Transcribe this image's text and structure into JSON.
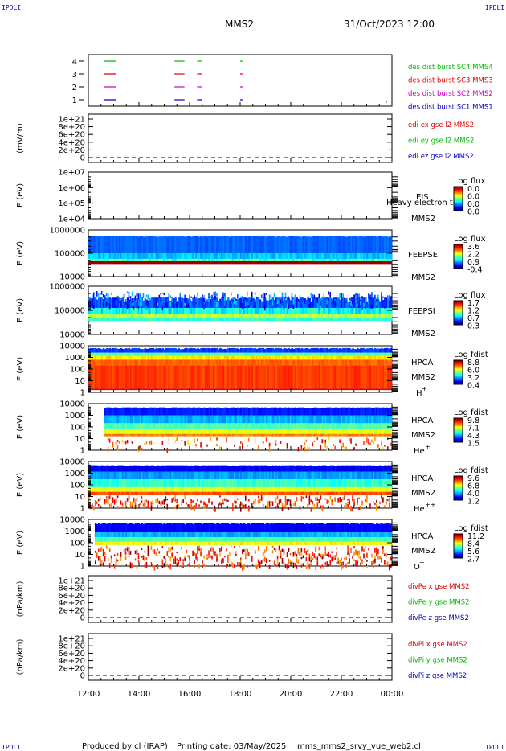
{
  "header": {
    "corner_tl": "IPDLI",
    "corner_tr": "IPDLI",
    "corner_bl": "IPDLI",
    "corner_br": "IPDLI",
    "spacecraft": "MMS2",
    "datetime": "31/Oct/2023 12:00"
  },
  "footer": {
    "produced": "Produced by cl (IRAP)",
    "printing": "Printing date: 03/May/2025",
    "script": "mms_mms2_srvy_vue_web2.cl"
  },
  "colors": {
    "mms1": "#0000cc",
    "mms2": "#cc00cc",
    "mms3": "#dd0000",
    "mms4": "#00bb00"
  },
  "chart_data": [
    {
      "type": "line",
      "id": "burst",
      "ylabel": "",
      "yticks": [
        "4",
        "3",
        "2",
        "1"
      ],
      "x_start": "12:00",
      "x_end": "00:00",
      "series": [
        {
          "name": "des dist burst SC1 MMS1",
          "level": 1,
          "color": "#0000cc",
          "intervals": [
            [
              12.6,
              13.1
            ],
            [
              15.4,
              15.8
            ],
            [
              16.3,
              16.5
            ],
            [
              18.0,
              18.1
            ]
          ]
        },
        {
          "name": "des dist burst SC2 MMS2",
          "level": 2,
          "color": "#cc00cc",
          "intervals": [
            [
              12.6,
              13.1
            ],
            [
              15.4,
              15.8
            ],
            [
              16.3,
              16.5
            ],
            [
              18.0,
              18.1
            ]
          ]
        },
        {
          "name": "des dist burst SC3 MMS3",
          "level": 3,
          "color": "#dd0000",
          "intervals": [
            [
              12.6,
              13.1
            ],
            [
              15.4,
              15.8
            ],
            [
              16.3,
              16.5
            ],
            [
              18.0,
              18.1
            ]
          ]
        },
        {
          "name": "des dist burst SC4 MMS4",
          "level": 4,
          "color": "#00bb00",
          "intervals": [
            [
              12.6,
              13.1
            ],
            [
              15.4,
              15.8
            ],
            [
              16.3,
              16.5
            ],
            [
              18.0,
              18.1
            ]
          ]
        }
      ]
    },
    {
      "type": "line",
      "id": "edi",
      "ylabel": "(mV/m)",
      "yticks": [
        "1e+21",
        "8e+20",
        "6e+20",
        "4e+20",
        "2e+20",
        "0"
      ],
      "series": [
        {
          "name": "edi ex gse l2 MMS2",
          "color": "#dd0000"
        },
        {
          "name": "edi ey gse l2 MMS2",
          "color": "#00bb00"
        },
        {
          "name": "edi ez gse l2 MMS2",
          "color": "#0000cc"
        }
      ]
    },
    {
      "type": "heatmap",
      "id": "eis",
      "ylabel": "E (eV)",
      "yticks": [
        "1e+07",
        "1e+06",
        "1e+05",
        "1e+04"
      ],
      "instrument": "EIS",
      "overlay": "Heavy electron to",
      "spacecraft": "MMS2",
      "cbar_title": "Log flux",
      "cbar_ticks": [
        "0.0",
        "0.0",
        "0.0",
        "0.0"
      ]
    },
    {
      "type": "heatmap",
      "id": "feepse",
      "ylabel": "E (eV)",
      "yticks": [
        "1000000",
        "100000",
        "10000"
      ],
      "instrument": "FEEPSE",
      "spacecraft": "MMS2",
      "cbar_title": "Log flux",
      "cbar_ticks": [
        "3.6",
        "2.2",
        "0.9",
        "-0.4"
      ]
    },
    {
      "type": "heatmap",
      "id": "feepsi",
      "ylabel": "E (eV)",
      "yticks": [
        "1000000",
        "100000",
        "10000"
      ],
      "instrument": "FEEPSI",
      "spacecraft": "MMS2",
      "cbar_title": "Log flux",
      "cbar_ticks": [
        "1.7",
        "1.2",
        "0.7",
        "0.3"
      ]
    },
    {
      "type": "heatmap",
      "id": "hpca_h",
      "ylabel": "E (eV)",
      "yticks": [
        "10000",
        "1000",
        "100",
        "10",
        "1"
      ],
      "instrument": "HPCA",
      "spacecraft": "MMS2",
      "species": "H",
      "charge": "+",
      "cbar_title": "Log fdist",
      "cbar_ticks": [
        "8.8",
        "6.0",
        "3.2",
        "0.4"
      ]
    },
    {
      "type": "heatmap",
      "id": "hpca_he",
      "ylabel": "E (eV)",
      "yticks": [
        "10000",
        "1000",
        "100",
        "10",
        "1"
      ],
      "instrument": "HPCA",
      "spacecraft": "MMS2",
      "species": "He",
      "charge": "+",
      "cbar_title": "Log fdist",
      "cbar_ticks": [
        "9.8",
        "7.1",
        "4.3",
        "1.5"
      ]
    },
    {
      "type": "heatmap",
      "id": "hpca_hepp",
      "ylabel": "E (eV)",
      "yticks": [
        "10000",
        "1000",
        "100",
        "10",
        "1"
      ],
      "instrument": "HPCA",
      "spacecraft": "MMS2",
      "species": "He",
      "charge": "++",
      "cbar_title": "Log fdist",
      "cbar_ticks": [
        "9.6",
        "6.8",
        "4.0",
        "1.2"
      ]
    },
    {
      "type": "heatmap",
      "id": "hpca_o",
      "ylabel": "E (eV)",
      "yticks": [
        "10000",
        "1000",
        "100",
        "10",
        "1"
      ],
      "instrument": "HPCA",
      "spacecraft": "MMS2",
      "species": "O",
      "charge": "+",
      "cbar_title": "Log fdist",
      "cbar_ticks": [
        "11.2",
        "8.4",
        "5.6",
        "2.7"
      ]
    },
    {
      "type": "line",
      "id": "divpe",
      "ylabel": "(nPa/km)",
      "yticks": [
        "1e+21",
        "8e+20",
        "6e+20",
        "4e+20",
        "2e+20",
        "0"
      ],
      "series": [
        {
          "name": "divPe x gse MMS2",
          "color": "#dd0000"
        },
        {
          "name": "divPe y gse MMS2",
          "color": "#00bb00"
        },
        {
          "name": "divPe z gse MMS2",
          "color": "#0000cc"
        }
      ]
    },
    {
      "type": "line",
      "id": "divpi",
      "ylabel": "(nPa/km)",
      "yticks": [
        "1e+21",
        "8e+20",
        "6e+20",
        "4e+20",
        "2e+20",
        "0"
      ],
      "series": [
        {
          "name": "divPi x gse MMS2",
          "color": "#dd0000"
        },
        {
          "name": "divPi y gse MMS2",
          "color": "#00bb00"
        },
        {
          "name": "divPi z gse MMS2",
          "color": "#0000cc"
        }
      ]
    }
  ],
  "xaxis": {
    "ticks": [
      "12:00",
      "14:00",
      "16:00",
      "18:00",
      "20:00",
      "22:00",
      "00:00"
    ]
  }
}
